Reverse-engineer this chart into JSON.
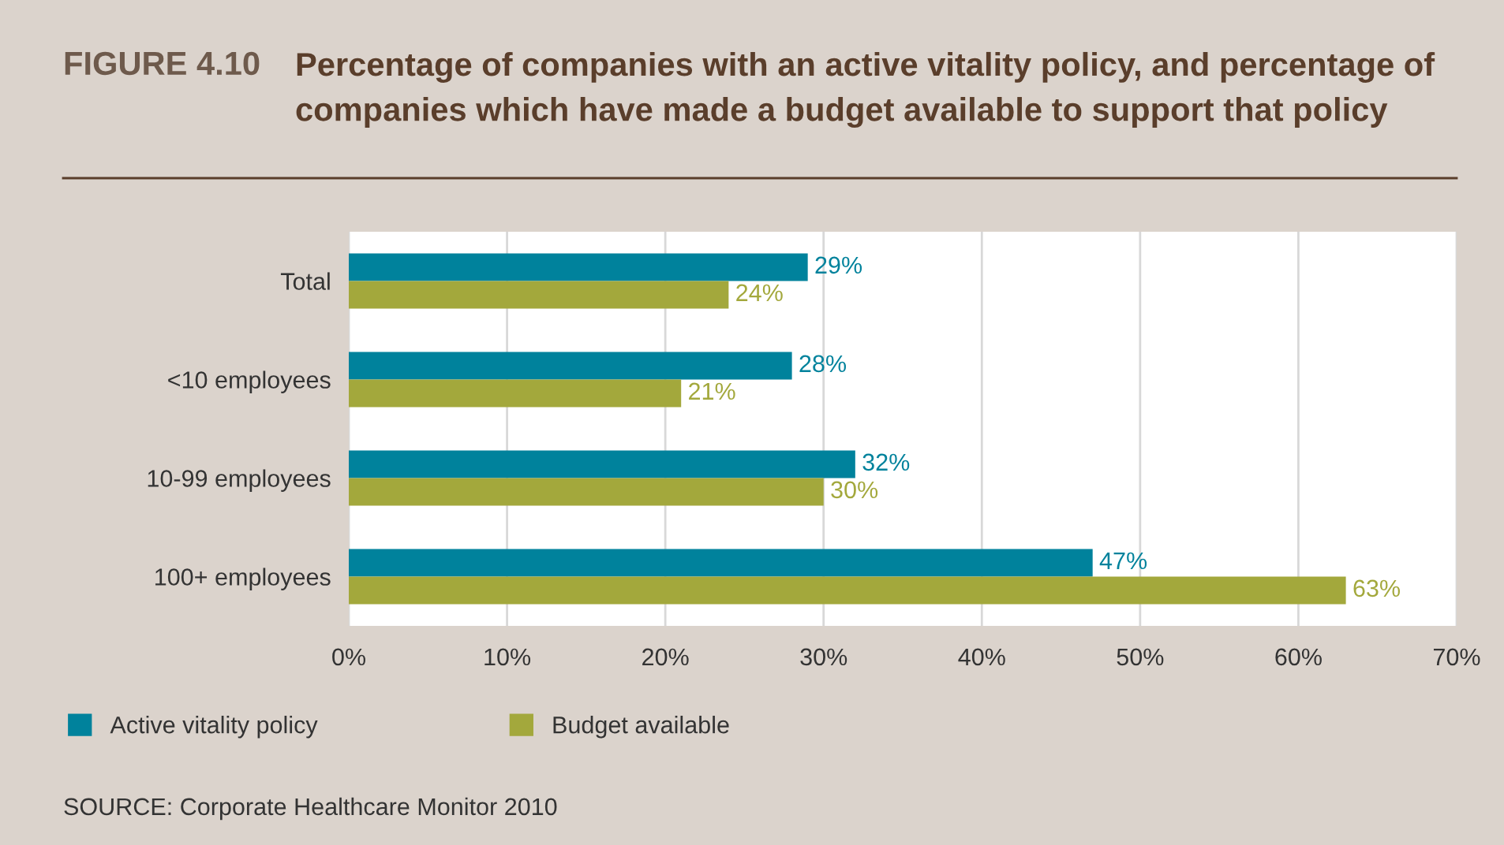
{
  "chart_data": {
    "type": "bar",
    "orientation": "horizontal",
    "title": "Percentage of companies with an active vitality policy, and percentage of\ncompanies which have made a budget available to support that policy",
    "annotations": [
      "FIGURE 4.10",
      "SOURCE: Corporate Healthcare Monitor 2010"
    ],
    "categories": [
      "Total",
      "<10 employees",
      "10-99 employees",
      "100+ employees"
    ],
    "series": [
      {
        "name": "Active vitality policy",
        "color": "#00829c",
        "values": [
          29,
          28,
          32,
          47
        ]
      },
      {
        "name": "Budget available",
        "color": "#a3a83c",
        "values": [
          24,
          21,
          30,
          63
        ]
      }
    ],
    "xlim": [
      0,
      70
    ],
    "xticks": [
      {
        "value": 0,
        "label": "0%"
      },
      {
        "value": 10,
        "label": "10%"
      },
      {
        "value": 20,
        "label": "20%"
      },
      {
        "value": 30,
        "label": "30%"
      },
      {
        "value": 40,
        "label": "40%"
      },
      {
        "value": 50,
        "label": "50%"
      },
      {
        "value": 60,
        "label": "60%"
      },
      {
        "value": 70,
        "label": "70%"
      }
    ],
    "value_labels": [
      [
        "29%",
        "28%",
        "32%",
        "47%"
      ],
      [
        "24%",
        "21%",
        "30%",
        "63%"
      ]
    ],
    "grid": "x",
    "legend": "bottom"
  }
}
